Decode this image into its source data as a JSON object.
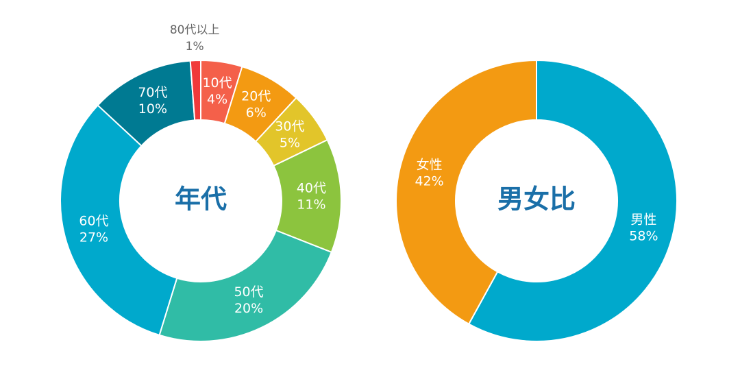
{
  "chart_data": [
    {
      "type": "pie",
      "center_label": "年代",
      "categories": [
        "10代",
        "20代",
        "30代",
        "40代",
        "50代",
        "60代",
        "70代",
        "80代以上"
      ],
      "values": [
        4,
        6,
        5,
        11,
        20,
        27,
        10,
        1
      ],
      "value_labels": [
        "4%",
        "6%",
        "5%",
        "11%",
        "20%",
        "27%",
        "10%",
        "1%"
      ],
      "colors": [
        "#f4604a",
        "#f39a12",
        "#e2c52a",
        "#8cc43e",
        "#30bca6",
        "#00a9cc",
        "#007a92",
        "#f03a3a"
      ]
    },
    {
      "type": "pie",
      "center_label": "男女比",
      "categories": [
        "男性",
        "女性"
      ],
      "values": [
        58,
        42
      ],
      "value_labels": [
        "58%",
        "42%"
      ],
      "colors": [
        "#00a9cc",
        "#f39a12"
      ]
    }
  ]
}
